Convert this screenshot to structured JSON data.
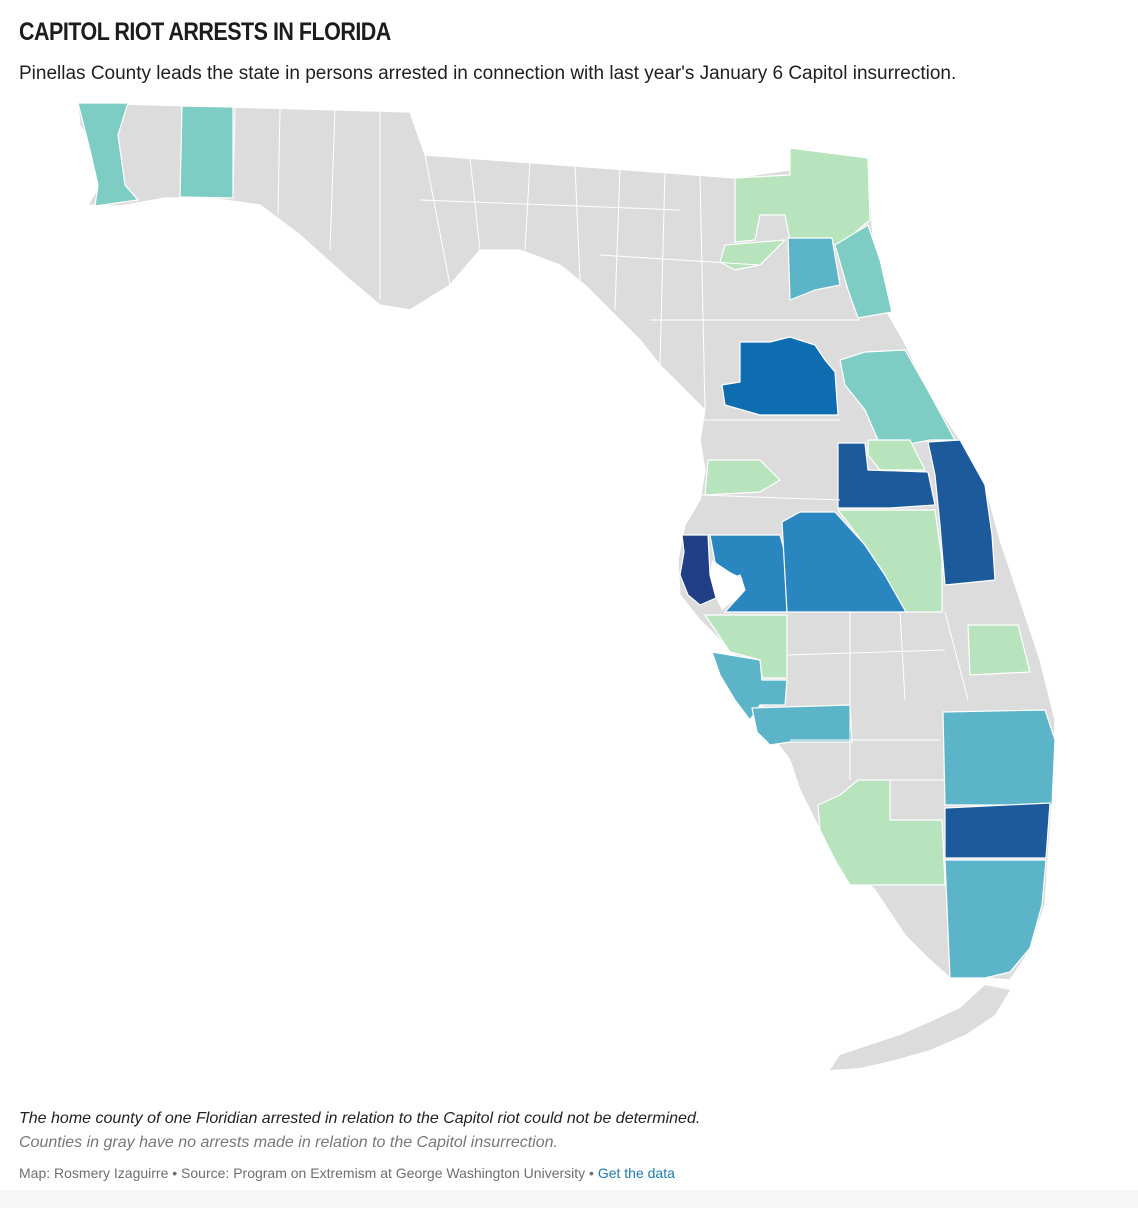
{
  "header": {
    "title": "CAPITOL RIOT ARRESTS IN FLORIDA",
    "subtitle": "Pinellas County leads the state in persons arrested in connection with last year's January 6 Capitol insurrection."
  },
  "map": {
    "region": "Florida counties",
    "colors": {
      "none": "#dcdcdc",
      "light_green": "#b7e3bd",
      "teal": "#7ecdc4",
      "light_blue": "#5bb4c8",
      "mid_blue": "#2a86bf",
      "blue": "#0e6cb1",
      "dark_blue": "#1c5a9b",
      "navy": "#213f86",
      "border": "#ffffff"
    },
    "legend_note": "Counties in gray have no arrests made in relation to the Capitol insurrection."
  },
  "notes": {
    "unknown_county": "The home county of one Floridian arrested in relation to the Capitol riot could not be determined.",
    "gray_counties": "Counties in gray have no arrests made in relation to the Capitol insurrection."
  },
  "credit": {
    "text": "Map: Rosmery Izaguirre • Source: Program on Extremism at George Washington University • ",
    "link_label": "Get the data"
  }
}
